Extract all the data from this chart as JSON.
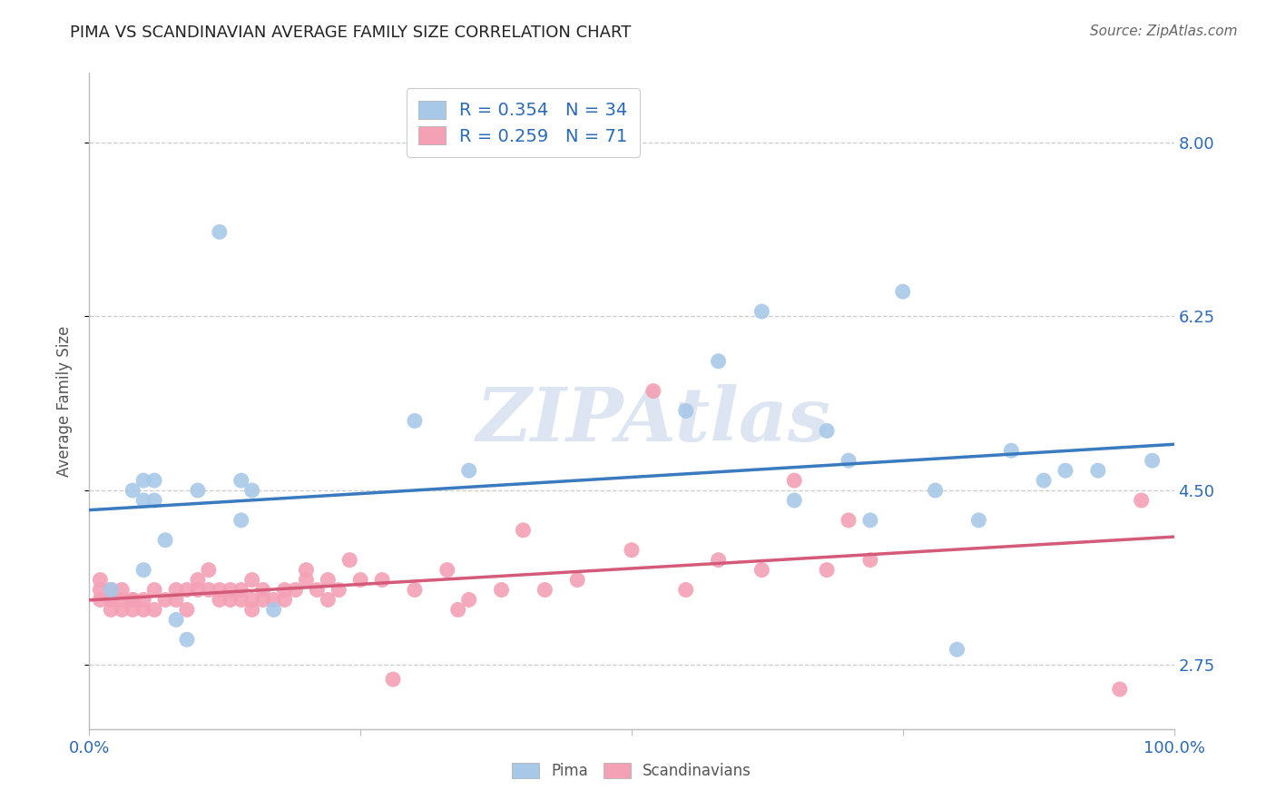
{
  "title": "PIMA VS SCANDINAVIAN AVERAGE FAMILY SIZE CORRELATION CHART",
  "source": "Source: ZipAtlas.com",
  "ylabel": "Average Family Size",
  "xlim": [
    0,
    1
  ],
  "ylim": [
    2.1,
    8.7
  ],
  "yticks": [
    2.75,
    4.5,
    6.25,
    8.0
  ],
  "xticks": [
    0.0,
    0.25,
    0.5,
    0.75,
    1.0
  ],
  "xtick_labels": [
    "0.0%",
    "",
    "",
    "",
    "100.0%"
  ],
  "pima_color": "#a8c8e8",
  "scandinavian_color": "#f4a0b5",
  "pima_line_color": "#3a7abf",
  "scandinavian_line_color": "#d45a7a",
  "pima_R": 0.354,
  "pima_N": 34,
  "scandinavian_R": 0.259,
  "scandinavian_N": 71,
  "pima_x": [
    0.02,
    0.04,
    0.05,
    0.05,
    0.05,
    0.06,
    0.06,
    0.07,
    0.08,
    0.09,
    0.1,
    0.12,
    0.14,
    0.14,
    0.15,
    0.17,
    0.3,
    0.35,
    0.55,
    0.58,
    0.62,
    0.65,
    0.68,
    0.7,
    0.72,
    0.75,
    0.78,
    0.8,
    0.82,
    0.85,
    0.88,
    0.9,
    0.93,
    0.98
  ],
  "pima_y": [
    3.5,
    4.5,
    4.4,
    4.6,
    3.7,
    4.4,
    4.6,
    4.0,
    3.2,
    3.0,
    4.5,
    7.1,
    4.2,
    4.6,
    4.5,
    3.3,
    5.2,
    4.7,
    5.3,
    5.8,
    6.3,
    4.4,
    5.1,
    4.8,
    4.2,
    6.5,
    4.5,
    2.9,
    4.2,
    4.9,
    4.6,
    4.7,
    4.7,
    4.8
  ],
  "scand_x": [
    0.01,
    0.01,
    0.01,
    0.02,
    0.02,
    0.02,
    0.02,
    0.02,
    0.03,
    0.03,
    0.03,
    0.04,
    0.04,
    0.04,
    0.05,
    0.05,
    0.06,
    0.06,
    0.07,
    0.08,
    0.08,
    0.09,
    0.09,
    0.1,
    0.1,
    0.11,
    0.11,
    0.12,
    0.12,
    0.13,
    0.13,
    0.14,
    0.14,
    0.15,
    0.15,
    0.15,
    0.16,
    0.16,
    0.17,
    0.18,
    0.18,
    0.19,
    0.2,
    0.2,
    0.21,
    0.22,
    0.22,
    0.23,
    0.24,
    0.25,
    0.27,
    0.28,
    0.3,
    0.33,
    0.34,
    0.35,
    0.38,
    0.4,
    0.42,
    0.45,
    0.5,
    0.52,
    0.55,
    0.58,
    0.62,
    0.65,
    0.68,
    0.7,
    0.72,
    0.95,
    0.97
  ],
  "scand_y": [
    3.4,
    3.5,
    3.6,
    3.3,
    3.4,
    3.4,
    3.5,
    3.5,
    3.3,
    3.4,
    3.5,
    3.3,
    3.4,
    3.4,
    3.3,
    3.4,
    3.3,
    3.5,
    3.4,
    3.4,
    3.5,
    3.3,
    3.5,
    3.5,
    3.6,
    3.5,
    3.7,
    3.4,
    3.5,
    3.4,
    3.5,
    3.4,
    3.5,
    3.3,
    3.4,
    3.6,
    3.4,
    3.5,
    3.4,
    3.4,
    3.5,
    3.5,
    3.6,
    3.7,
    3.5,
    3.4,
    3.6,
    3.5,
    3.8,
    3.6,
    3.6,
    2.6,
    3.5,
    3.7,
    3.3,
    3.4,
    3.5,
    4.1,
    3.5,
    3.6,
    3.9,
    5.5,
    3.5,
    3.8,
    3.7,
    4.6,
    3.7,
    4.2,
    3.8,
    2.5,
    4.4
  ],
  "grid_color": "#cccccc",
  "spine_color": "#bbbbbb",
  "tick_color": "#2a6aba",
  "title_fontsize": 13,
  "source_fontsize": 11,
  "label_fontsize": 12,
  "tick_fontsize": 13,
  "legend_fontsize": 14,
  "ylabel_fontsize": 12,
  "watermark_text": "ZIPAtlas",
  "watermark_color": "#c5d5e8",
  "watermark_alpha": 0.6
}
